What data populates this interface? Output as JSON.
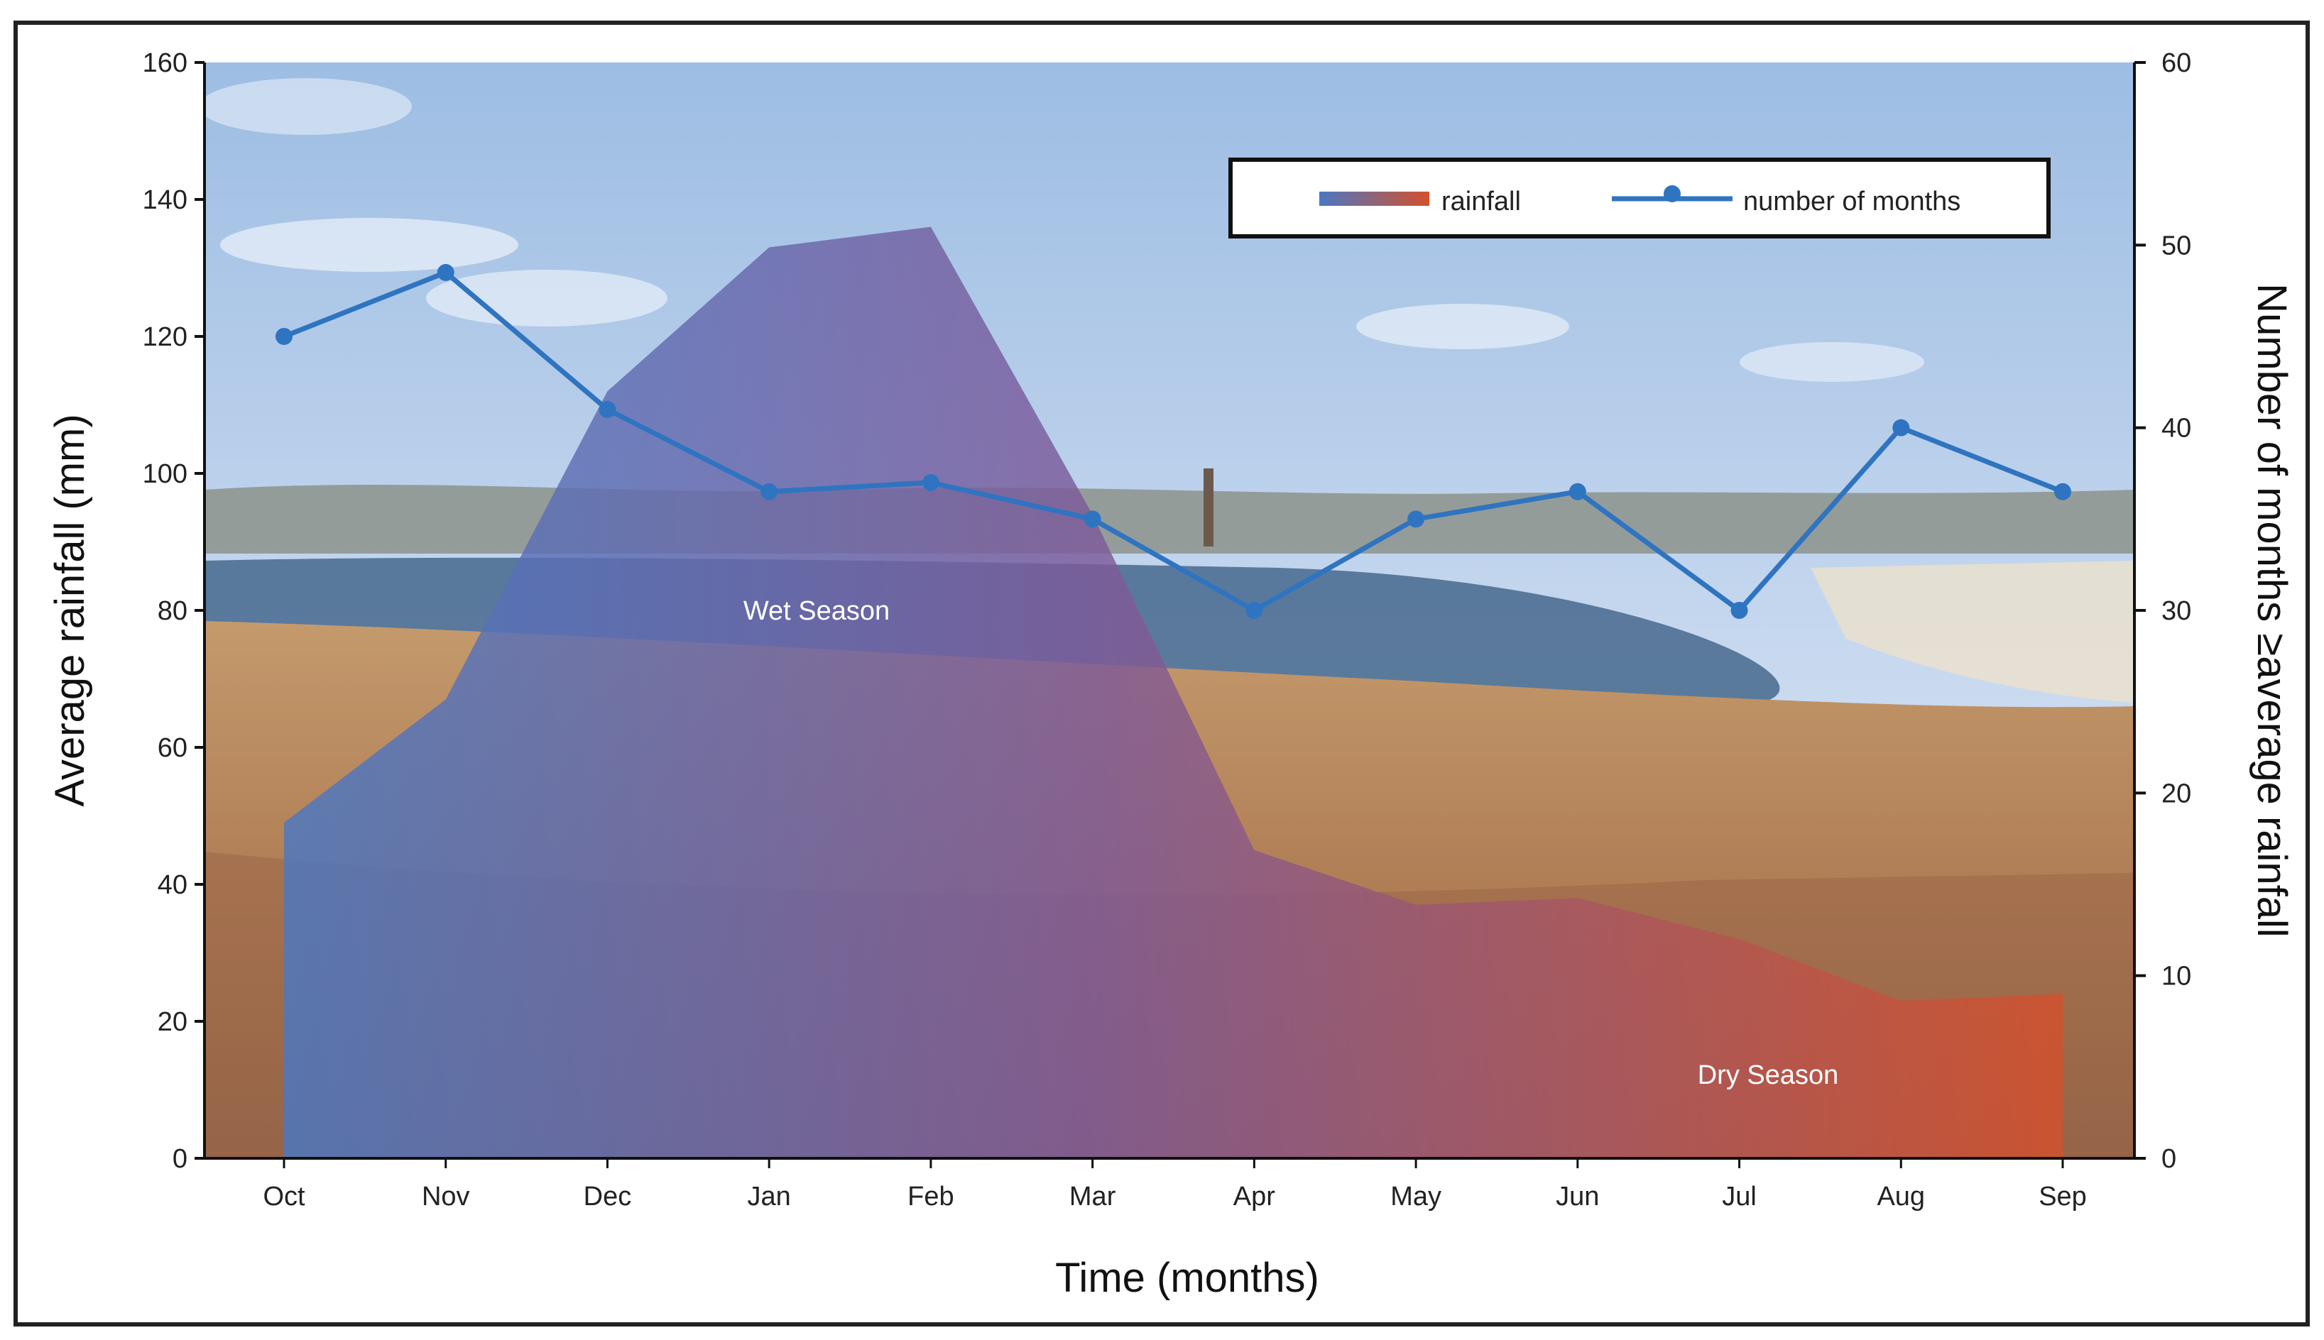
{
  "chart_data": {
    "type": "area",
    "categories": [
      "Oct",
      "Nov",
      "Dec",
      "Jan",
      "Feb",
      "Mar",
      "Apr",
      "May",
      "Jun",
      "Jul",
      "Aug",
      "Sep"
    ],
    "series": [
      {
        "name": "rainfall",
        "type": "area",
        "axis": "left",
        "values": [
          49,
          67,
          112,
          133,
          136,
          94,
          45,
          37,
          38,
          32,
          23,
          24
        ],
        "color_start": "#4a78c2",
        "color_end": "#d4502c"
      },
      {
        "name": "number of months",
        "type": "line",
        "axis": "right",
        "values": [
          45,
          48.5,
          41,
          36.5,
          37,
          35,
          30,
          35,
          36.5,
          30,
          40,
          36.5
        ],
        "color": "#2f74c0"
      }
    ],
    "xlabel": "Time (months)",
    "ylabel": "Average rainfall (mm)",
    "y2label": "Number of months ≥average rainfall",
    "ylim": [
      0,
      160
    ],
    "y2lim": [
      0,
      60
    ],
    "yticks": [
      "0",
      "20",
      "40",
      "60",
      "80",
      "100",
      "120",
      "140",
      "160"
    ],
    "y2ticks": [
      "0",
      "10",
      "20",
      "30",
      "40",
      "50",
      "60"
    ],
    "annotations": [
      "Wet Season",
      "Dry Season"
    ],
    "legend": {
      "position": "top-right",
      "entries": [
        "rainfall",
        "number of months"
      ]
    },
    "grid": false,
    "background": "landscape photograph"
  }
}
